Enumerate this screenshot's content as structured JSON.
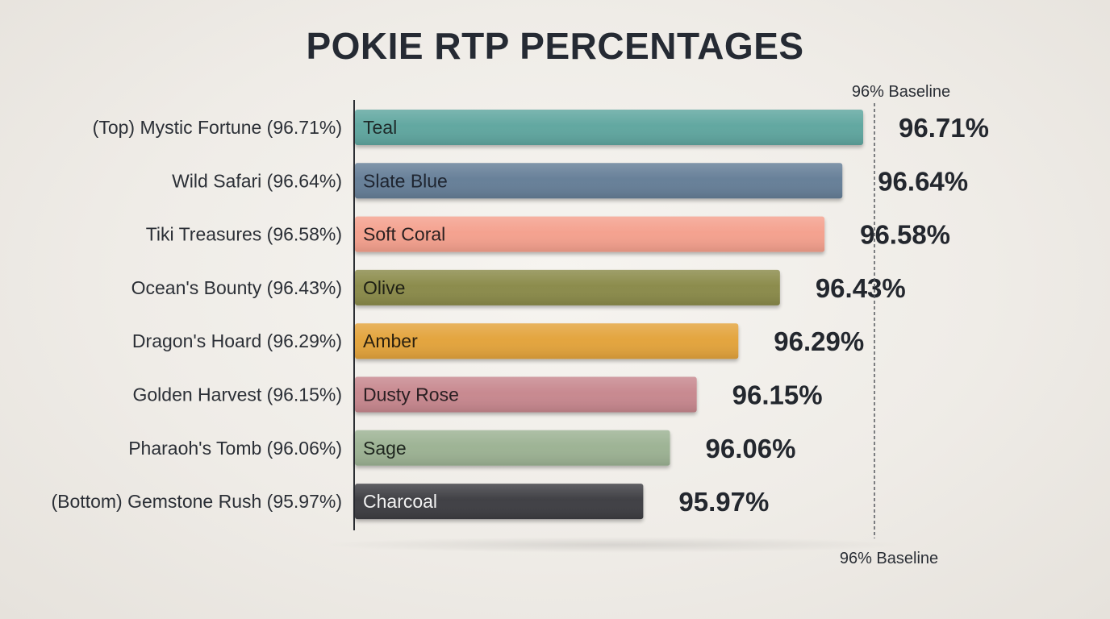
{
  "chart_data": {
    "type": "bar",
    "orientation": "horizontal",
    "title": "POKIE RTP PERCENTAGES",
    "categories": [
      "(Top) Mystic Fortune (96.71%)",
      "Wild Safari (96.64%)",
      "Tiki Treasures (96.58%)",
      "Ocean's Bounty (96.43%)",
      "Dragon's Hoard (96.29%)",
      "Golden Harvest (96.15%)",
      "Pharaoh's Tomb (96.06%)",
      "(Bottom) Gemstone Rush (95.97%)"
    ],
    "values": [
      96.71,
      96.64,
      96.58,
      96.43,
      96.29,
      96.15,
      96.06,
      95.97
    ],
    "value_labels": [
      "96.71%",
      "96.64%",
      "96.58%",
      "96.43%",
      "96.29%",
      "96.15%",
      "96.06%",
      "95.97%"
    ],
    "bar_labels": [
      "Teal",
      "Slate Blue",
      "Soft Coral",
      "Olive",
      "Amber",
      "Dusty Rose",
      "Sage",
      "Charcoal"
    ],
    "colors": [
      "#5fa69f",
      "#657e97",
      "#f4a08d",
      "#8a8a48",
      "#e3a33a",
      "#c7878e",
      "#9cb293",
      "#3c3e43"
    ],
    "bar_text_colors": [
      "#1f2a2a",
      "#1f2530",
      "#2a2020",
      "#1f2015",
      "#2a2010",
      "#2a1f22",
      "#1f261f",
      "#f2f2f2"
    ],
    "baseline": {
      "value": 96,
      "label_top": "96% Baseline",
      "label_bottom": "96% Baseline"
    },
    "xlabel": "",
    "ylabel": "",
    "grid": false,
    "legend": "none"
  }
}
